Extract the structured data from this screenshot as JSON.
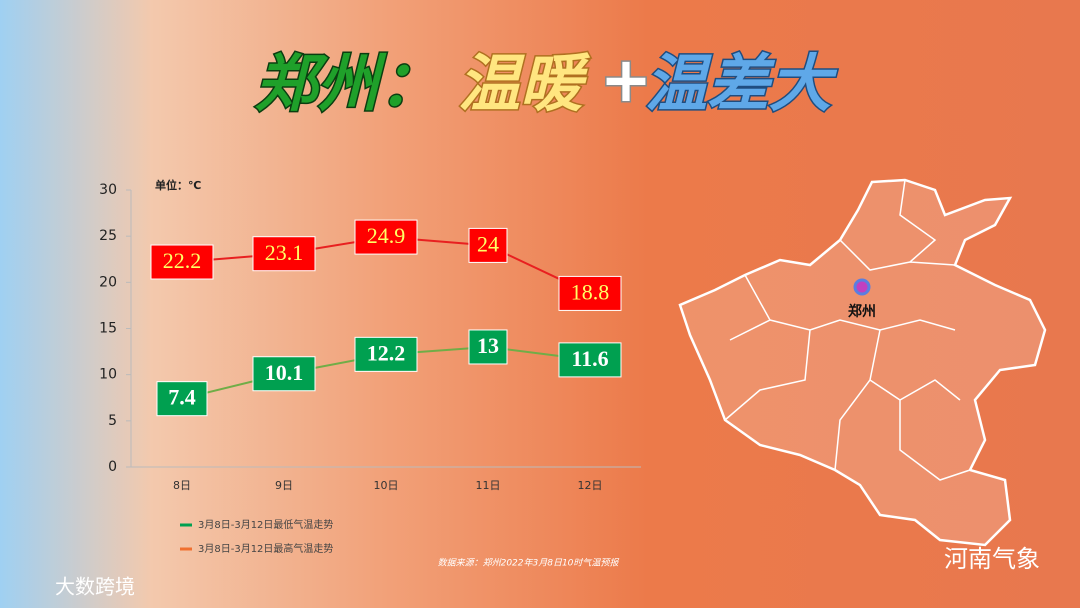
{
  "chart_data": {
    "type": "line",
    "title_parts": [
      "郑州：",
      "温暖",
      "+",
      "温差大"
    ],
    "unit_label": "单位：℃",
    "categories": [
      "8日",
      "9日",
      "10日",
      "11日",
      "12日"
    ],
    "series": [
      {
        "name": "3月8日-3月12日最低气温走势",
        "color": "#70ad47",
        "label_fill": "#00a050",
        "label_text": "#ffffff",
        "legend_color": "#00a050",
        "values": [
          7.4,
          10.1,
          12.2,
          13,
          11.6
        ]
      },
      {
        "name": "3月8日-3月12日最高气温走势",
        "color": "#e82020",
        "label_fill": "#ff0000",
        "label_text": "#ffff66",
        "legend_color": "#f07030",
        "values": [
          22.2,
          23.1,
          24.9,
          24,
          18.8
        ]
      }
    ],
    "ylim": [
      0,
      30
    ],
    "yticks": [
      0,
      5,
      10,
      15,
      20,
      25,
      30
    ],
    "source": "数据来源：郑州2022年3月8日10时气温预报",
    "map_label": "郑州",
    "watermark_left": "大数跨境",
    "watermark_right": "河南气象"
  }
}
